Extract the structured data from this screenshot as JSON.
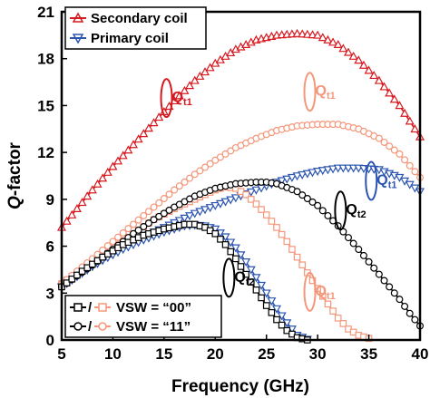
{
  "chart_data": {
    "type": "line",
    "xlabel": "Frequency (GHz)",
    "ylabel_main": "Q",
    "ylabel_rest": "-factor",
    "xlim": [
      5,
      40
    ],
    "ylim": [
      0,
      21
    ],
    "xticks": [
      5,
      10,
      15,
      20,
      25,
      30,
      35,
      40
    ],
    "yticks": [
      0,
      3,
      6,
      9,
      12,
      15,
      18,
      21
    ],
    "grid": false,
    "legend_top": [
      {
        "label": "Secondary coil",
        "color": "#d7191f",
        "marker": "triangle-up"
      },
      {
        "label": "Primary coil",
        "color": "#2b55b0",
        "marker": "triangle-down"
      }
    ],
    "legend_bottom": [
      {
        "label": "VSW = “00”",
        "marker": "square"
      },
      {
        "label": "VSW = “11”",
        "marker": "circle"
      }
    ],
    "series": [
      {
        "label": "Secondary coil, VSW = “11”",
        "color": "#d7191f",
        "marker": "triangle-up",
        "points": [
          [
            5,
            7.2
          ],
          [
            8,
            9.6
          ],
          [
            10,
            11.1
          ],
          [
            12,
            12.5
          ],
          [
            14,
            13.9
          ],
          [
            16,
            15.3
          ],
          [
            18,
            16.6
          ],
          [
            20,
            17.7
          ],
          [
            22,
            18.6
          ],
          [
            24,
            19.2
          ],
          [
            26,
            19.5
          ],
          [
            28,
            19.6
          ],
          [
            30,
            19.5
          ],
          [
            32,
            18.9
          ],
          [
            34,
            17.9
          ],
          [
            36,
            16.6
          ],
          [
            38,
            15.0
          ],
          [
            40,
            13.0
          ]
        ]
      },
      {
        "label": "Primary coil, VSW = “11”",
        "color": "#2b55b0",
        "marker": "triangle-down",
        "points": [
          [
            5,
            3.4
          ],
          [
            8,
            4.7
          ],
          [
            10,
            5.5
          ],
          [
            12,
            6.2
          ],
          [
            14,
            6.9
          ],
          [
            16,
            7.5
          ],
          [
            18,
            8.1
          ],
          [
            20,
            8.6
          ],
          [
            22,
            9.1
          ],
          [
            24,
            9.6
          ],
          [
            26,
            10.1
          ],
          [
            28,
            10.5
          ],
          [
            30,
            10.8
          ],
          [
            32,
            11.0
          ],
          [
            34,
            11.0
          ],
          [
            36,
            10.9
          ],
          [
            38,
            10.4
          ],
          [
            40,
            9.5
          ]
        ]
      },
      {
        "label": "Primary coil, VSW = “00”",
        "color": "#2b55b0",
        "marker": "triangle-down",
        "points": [
          [
            5,
            3.4
          ],
          [
            7,
            4.3
          ],
          [
            9,
            5.1
          ],
          [
            11,
            5.8
          ],
          [
            13,
            6.4
          ],
          [
            15,
            6.9
          ],
          [
            17,
            7.3
          ],
          [
            18,
            7.35
          ],
          [
            19,
            7.3
          ],
          [
            20,
            7.1
          ],
          [
            21,
            6.6
          ],
          [
            22,
            5.9
          ],
          [
            23,
            5.0
          ],
          [
            24,
            4.0
          ],
          [
            25,
            3.0
          ],
          [
            26,
            2.0
          ],
          [
            27,
            1.1
          ],
          [
            28,
            0.3
          ],
          [
            29,
            0.05
          ]
        ]
      },
      {
        "label": "Secondary coil, VSW = “00”",
        "color": "#f4977a",
        "marker": "square",
        "points": [
          [
            5,
            3.6
          ],
          [
            8,
            5.0
          ],
          [
            10,
            5.9
          ],
          [
            12,
            6.8
          ],
          [
            14,
            7.7
          ],
          [
            16,
            8.4
          ],
          [
            18,
            9.0
          ],
          [
            20,
            9.6
          ],
          [
            21,
            9.8
          ],
          [
            22,
            9.7
          ],
          [
            23,
            9.3
          ],
          [
            24,
            8.7
          ],
          [
            25,
            8.0
          ],
          [
            26,
            7.2
          ],
          [
            27,
            6.3
          ],
          [
            28,
            5.3
          ],
          [
            29,
            4.3
          ],
          [
            30,
            3.3
          ],
          [
            31,
            2.3
          ],
          [
            32,
            1.4
          ],
          [
            33,
            0.7
          ],
          [
            34,
            0.3
          ],
          [
            35,
            0.1
          ]
        ]
      },
      {
        "label": "Secondary coil, VSW = “11” (peak)",
        "color": "#f4977a",
        "marker": "circle",
        "points": [
          [
            5,
            3.6
          ],
          [
            8,
            5.2
          ],
          [
            10,
            6.3
          ],
          [
            12,
            7.4
          ],
          [
            14,
            8.5
          ],
          [
            16,
            9.6
          ],
          [
            18,
            10.6
          ],
          [
            20,
            11.5
          ],
          [
            22,
            12.3
          ],
          [
            24,
            12.9
          ],
          [
            26,
            13.4
          ],
          [
            28,
            13.7
          ],
          [
            30,
            13.8
          ],
          [
            32,
            13.8
          ],
          [
            34,
            13.5
          ],
          [
            36,
            12.9
          ],
          [
            38,
            11.9
          ],
          [
            40,
            10.4
          ]
        ]
      },
      {
        "label": "Primary coil (black), VSW = “11”",
        "color": "#000000",
        "marker": "circle",
        "points": [
          [
            5,
            3.4
          ],
          [
            8,
            4.8
          ],
          [
            10,
            5.8
          ],
          [
            12,
            6.8
          ],
          [
            14,
            7.7
          ],
          [
            16,
            8.5
          ],
          [
            18,
            9.2
          ],
          [
            20,
            9.7
          ],
          [
            22,
            10.0
          ],
          [
            24,
            10.1
          ],
          [
            25,
            10.1
          ],
          [
            26,
            10.0
          ],
          [
            28,
            9.5
          ],
          [
            30,
            8.6
          ],
          [
            32,
            7.3
          ],
          [
            34,
            5.8
          ],
          [
            36,
            4.2
          ],
          [
            38,
            2.6
          ],
          [
            39,
            1.7
          ],
          [
            40,
            0.9
          ]
        ]
      },
      {
        "label": "Primary coil (black), VSW = “00”",
        "color": "#000000",
        "marker": "square",
        "points": [
          [
            5,
            3.4
          ],
          [
            7,
            4.4
          ],
          [
            9,
            5.3
          ],
          [
            11,
            6.1
          ],
          [
            13,
            6.7
          ],
          [
            15,
            7.1
          ],
          [
            17,
            7.4
          ],
          [
            18,
            7.4
          ],
          [
            19,
            7.2
          ],
          [
            20,
            6.8
          ],
          [
            21,
            6.1
          ],
          [
            22,
            5.2
          ],
          [
            23,
            4.2
          ],
          [
            24,
            3.2
          ],
          [
            25,
            2.2
          ],
          [
            26,
            1.3
          ],
          [
            27,
            0.6
          ],
          [
            28,
            0.15
          ],
          [
            29,
            0.0
          ]
        ]
      }
    ],
    "annotations": [
      {
        "text": "Q",
        "sub": "t1",
        "color": "#d7191f",
        "x": 16.3,
        "y": 15.6
      },
      {
        "text": "Q",
        "sub": "t1",
        "color": "#f4977a",
        "x": 30.3,
        "y": 16.0
      },
      {
        "text": "Q",
        "sub": "t1",
        "color": "#2b55b0",
        "x": 36.3,
        "y": 10.3
      },
      {
        "text": "Q",
        "sub": "t2",
        "color": "#000000",
        "x": 33.3,
        "y": 8.4
      },
      {
        "text": "Q",
        "sub": "t2",
        "color": "#000000",
        "x": 22.4,
        "y": 4.1
      },
      {
        "text": "Q",
        "sub": "t1",
        "color": "#f4977a",
        "x": 30.3,
        "y": 3.2
      }
    ]
  }
}
